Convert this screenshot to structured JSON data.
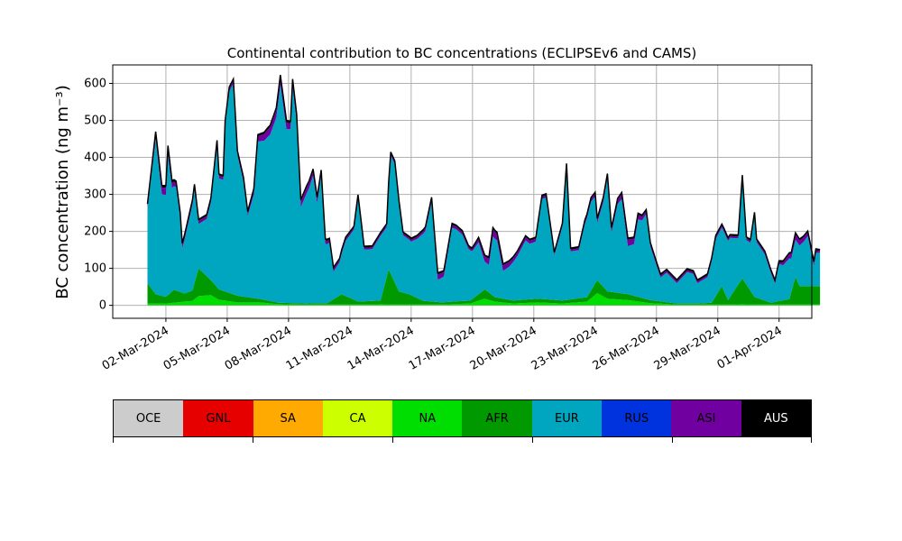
{
  "chart_data": {
    "type": "area",
    "stacked": true,
    "title": "Continental contribution to BC concentrations (ECLIPSEv6 and CAMS)",
    "ylabel": "BC concentration (ng m⁻³)",
    "xlabel": "",
    "ylim": [
      -35,
      650
    ],
    "xlim": [
      -2.6,
      31.6
    ],
    "yticks": [
      0,
      100,
      200,
      300,
      400,
      500,
      600
    ],
    "xticks": [
      {
        "x": 0,
        "label": "02-Mar-2024"
      },
      {
        "x": 3,
        "label": "05-Mar-2024"
      },
      {
        "x": 6,
        "label": "08-Mar-2024"
      },
      {
        "x": 9,
        "label": "11-Mar-2024"
      },
      {
        "x": 12,
        "label": "14-Mar-2024"
      },
      {
        "x": 15,
        "label": "17-Mar-2024"
      },
      {
        "x": 18,
        "label": "20-Mar-2024"
      },
      {
        "x": 21,
        "label": "23-Mar-2024"
      },
      {
        "x": 24,
        "label": "26-Mar-2024"
      },
      {
        "x": 27,
        "label": "29-Mar-2024"
      },
      {
        "x": 30,
        "label": "01-Apr-2024"
      }
    ],
    "grid": true,
    "series": [
      {
        "name": "NA",
        "color": "#00dd00",
        "points": [
          [
            -0.9,
            5
          ],
          [
            0,
            5
          ],
          [
            0.9,
            10
          ],
          [
            1.3,
            12
          ],
          [
            1.6,
            25
          ],
          [
            2.2,
            28
          ],
          [
            2.6,
            15
          ],
          [
            3.5,
            8
          ],
          [
            4.6,
            8
          ],
          [
            5.5,
            3
          ],
          [
            6.8,
            2
          ],
          [
            7.9,
            2
          ],
          [
            9.4,
            2
          ],
          [
            10.5,
            3
          ],
          [
            11.9,
            2
          ],
          [
            13.5,
            2
          ],
          [
            14.9,
            5
          ],
          [
            15.6,
            18
          ],
          [
            16.1,
            10
          ],
          [
            17,
            5
          ],
          [
            18.2,
            8
          ],
          [
            19.4,
            5
          ],
          [
            20.6,
            10
          ],
          [
            21.1,
            33
          ],
          [
            21.6,
            18
          ],
          [
            22.6,
            14
          ],
          [
            23.7,
            6
          ],
          [
            25,
            2
          ],
          [
            26.1,
            2
          ],
          [
            27.5,
            2
          ],
          [
            28.2,
            3
          ],
          [
            29.6,
            2
          ],
          [
            30.5,
            2
          ],
          [
            31,
            2
          ]
        ]
      },
      {
        "name": "AFR",
        "color": "#009900",
        "points": [
          [
            -0.9,
            55
          ],
          [
            -0.5,
            25
          ],
          [
            0,
            18
          ],
          [
            0.4,
            35
          ],
          [
            0.9,
            22
          ],
          [
            1.3,
            28
          ],
          [
            1.6,
            75
          ],
          [
            2.2,
            40
          ],
          [
            2.6,
            28
          ],
          [
            3.5,
            18
          ],
          [
            4.5,
            10
          ],
          [
            5.5,
            4
          ],
          [
            6.8,
            3
          ],
          [
            7.9,
            4
          ],
          [
            8.6,
            28
          ],
          [
            9.4,
            8
          ],
          [
            10.5,
            10
          ],
          [
            10.9,
            95
          ],
          [
            11.4,
            35
          ],
          [
            11.9,
            28
          ],
          [
            12.6,
            10
          ],
          [
            13.5,
            6
          ],
          [
            14.9,
            8
          ],
          [
            15.6,
            25
          ],
          [
            16.1,
            12
          ],
          [
            17,
            8
          ],
          [
            18.2,
            10
          ],
          [
            19.4,
            8
          ],
          [
            20.6,
            12
          ],
          [
            21.1,
            35
          ],
          [
            21.6,
            20
          ],
          [
            22.6,
            16
          ],
          [
            23.7,
            8
          ],
          [
            25,
            3
          ],
          [
            26.1,
            3
          ],
          [
            26.7,
            5
          ],
          [
            27.2,
            50
          ],
          [
            27.5,
            12
          ],
          [
            28.2,
            70
          ],
          [
            28.8,
            20
          ],
          [
            29.6,
            5
          ],
          [
            30.5,
            15
          ],
          [
            30.8,
            75
          ],
          [
            31,
            50
          ]
        ]
      },
      {
        "name": "EUR",
        "color": "#00a6c0",
        "points": [
          [
            -0.9,
            200
          ],
          [
            -0.5,
            420
          ],
          [
            -0.2,
            275
          ],
          [
            0,
            275
          ],
          [
            0.1,
            380
          ],
          [
            0.3,
            280
          ],
          [
            0.5,
            280
          ],
          [
            0.7,
            200
          ],
          [
            0.8,
            120
          ],
          [
            1.4,
            255
          ],
          [
            1.6,
            120
          ],
          [
            2.0,
            155
          ],
          [
            2.2,
            210
          ],
          [
            2.5,
            385
          ],
          [
            2.6,
            300
          ],
          [
            2.8,
            300
          ],
          [
            2.9,
            450
          ],
          [
            3.1,
            545
          ],
          [
            3.3,
            570
          ],
          [
            3.5,
            380
          ],
          [
            3.8,
            310
          ],
          [
            4.0,
            220
          ],
          [
            4.3,
            280
          ],
          [
            4.5,
            425
          ],
          [
            4.8,
            430
          ],
          [
            5.1,
            450
          ],
          [
            5.4,
            500
          ],
          [
            5.6,
            590
          ],
          [
            5.9,
            470
          ],
          [
            6.1,
            470
          ],
          [
            6.2,
            585
          ],
          [
            6.4,
            490
          ],
          [
            6.6,
            260
          ],
          [
            6.9,
            300
          ],
          [
            7.0,
            310
          ],
          [
            7.2,
            345
          ],
          [
            7.4,
            270
          ],
          [
            7.6,
            345
          ],
          [
            7.8,
            160
          ],
          [
            8.0,
            160
          ],
          [
            8.2,
            75
          ],
          [
            8.5,
            90
          ],
          [
            8.8,
            150
          ],
          [
            9.2,
            190
          ],
          [
            9.4,
            280
          ],
          [
            9.7,
            140
          ],
          [
            10.1,
            140
          ],
          [
            10.5,
            175
          ],
          [
            10.8,
            135
          ],
          [
            11.0,
            320
          ],
          [
            11.2,
            320
          ],
          [
            11.6,
            155
          ],
          [
            12.0,
            145
          ],
          [
            12.3,
            160
          ],
          [
            12.7,
            190
          ],
          [
            13.0,
            270
          ],
          [
            13.3,
            60
          ],
          [
            13.6,
            70
          ],
          [
            14.0,
            200
          ],
          [
            14.2,
            195
          ],
          [
            14.5,
            180
          ],
          [
            14.8,
            140
          ],
          [
            15.0,
            130
          ],
          [
            15.3,
            140
          ],
          [
            15.6,
            75
          ],
          [
            15.8,
            75
          ],
          [
            16.0,
            160
          ],
          [
            16.2,
            155
          ],
          [
            16.5,
            75
          ],
          [
            16.8,
            90
          ],
          [
            17.2,
            120
          ],
          [
            17.6,
            160
          ],
          [
            17.8,
            150
          ],
          [
            18.1,
            155
          ],
          [
            18.4,
            270
          ],
          [
            18.6,
            275
          ],
          [
            19.0,
            120
          ],
          [
            19.4,
            200
          ],
          [
            19.6,
            360
          ],
          [
            19.8,
            130
          ],
          [
            20.2,
            130
          ],
          [
            20.5,
            200
          ],
          [
            20.8,
            240
          ],
          [
            21.0,
            235
          ],
          [
            21.1,
            155
          ],
          [
            21.4,
            230
          ],
          [
            21.6,
            305
          ],
          [
            21.8,
            160
          ],
          [
            22.1,
            240
          ],
          [
            22.3,
            255
          ],
          [
            22.6,
            130
          ],
          [
            22.9,
            140
          ],
          [
            23.1,
            210
          ],
          [
            23.3,
            210
          ],
          [
            23.5,
            230
          ],
          [
            23.7,
            145
          ],
          [
            24.2,
            65
          ],
          [
            24.5,
            80
          ],
          [
            25.0,
            55
          ],
          [
            25.5,
            85
          ],
          [
            25.8,
            80
          ],
          [
            26.0,
            55
          ],
          [
            26.5,
            70
          ],
          [
            26.9,
            155
          ],
          [
            27.3,
            160
          ],
          [
            27.6,
            160
          ],
          [
            28.0,
            125
          ],
          [
            28.2,
            270
          ],
          [
            28.4,
            120
          ],
          [
            28.6,
            130
          ],
          [
            28.8,
            220
          ],
          [
            28.9,
            150
          ],
          [
            29.3,
            125
          ],
          [
            29.6,
            80
          ],
          [
            29.8,
            50
          ],
          [
            30.0,
            100
          ],
          [
            30.2,
            95
          ],
          [
            30.5,
            110
          ],
          [
            30.6,
            90
          ],
          [
            30.8,
            100
          ],
          [
            31.0,
            110
          ],
          [
            31.2,
            120
          ],
          [
            31.4,
            135
          ],
          [
            31.7,
            55
          ],
          [
            31.8,
            90
          ],
          [
            32.0,
            90
          ]
        ]
      },
      {
        "name": "ASI",
        "color": "#7000a0",
        "points": [
          [
            -0.9,
            10
          ],
          [
            -0.5,
            15
          ],
          [
            0,
            20
          ],
          [
            0.5,
            10
          ],
          [
            1,
            8
          ],
          [
            2,
            8
          ],
          [
            3,
            8
          ],
          [
            4,
            8
          ],
          [
            5,
            20
          ],
          [
            5.6,
            20
          ],
          [
            6.2,
            15
          ],
          [
            7,
            15
          ],
          [
            8,
            8
          ],
          [
            9,
            5
          ],
          [
            10,
            5
          ],
          [
            11,
            5
          ],
          [
            12,
            5
          ],
          [
            13,
            8
          ],
          [
            13.3,
            15
          ],
          [
            14,
            8
          ],
          [
            15,
            5
          ],
          [
            16,
            20
          ],
          [
            17,
            10
          ],
          [
            18,
            8
          ],
          [
            19,
            5
          ],
          [
            20,
            5
          ],
          [
            21,
            8
          ],
          [
            22,
            10
          ],
          [
            22.6,
            18
          ],
          [
            23.5,
            8
          ],
          [
            24,
            5
          ],
          [
            25,
            5
          ],
          [
            26,
            5
          ],
          [
            27,
            5
          ],
          [
            28,
            5
          ],
          [
            29,
            5
          ],
          [
            30,
            5
          ],
          [
            30.8,
            15
          ],
          [
            31.4,
            10
          ],
          [
            32,
            5
          ]
        ]
      },
      {
        "name": "AUS",
        "color": "#000000",
        "points": [
          [
            -0.9,
            4
          ],
          [
            0,
            6
          ],
          [
            2,
            4
          ],
          [
            4,
            4
          ],
          [
            5.6,
            6
          ],
          [
            6.2,
            6
          ],
          [
            8,
            4
          ],
          [
            10,
            4
          ],
          [
            12,
            4
          ],
          [
            14,
            4
          ],
          [
            16,
            4
          ],
          [
            18,
            4
          ],
          [
            20,
            4
          ],
          [
            22,
            4
          ],
          [
            24,
            4
          ],
          [
            26,
            4
          ],
          [
            28,
            4
          ],
          [
            30,
            4
          ],
          [
            32,
            4
          ]
        ]
      }
    ]
  },
  "legend": {
    "items": [
      {
        "label": "OCE",
        "color": "#cccccc"
      },
      {
        "label": "GNL",
        "color": "#e60000"
      },
      {
        "label": "SA",
        "color": "#ffaa00"
      },
      {
        "label": "CA",
        "color": "#ccff00"
      },
      {
        "label": "NA",
        "color": "#00dd00"
      },
      {
        "label": "AFR",
        "color": "#009900"
      },
      {
        "label": "EUR",
        "color": "#00a6c0"
      },
      {
        "label": "RUS",
        "color": "#0033dd"
      },
      {
        "label": "ASI",
        "color": "#7000a0"
      },
      {
        "label": "AUS",
        "color": "#000000"
      }
    ]
  }
}
